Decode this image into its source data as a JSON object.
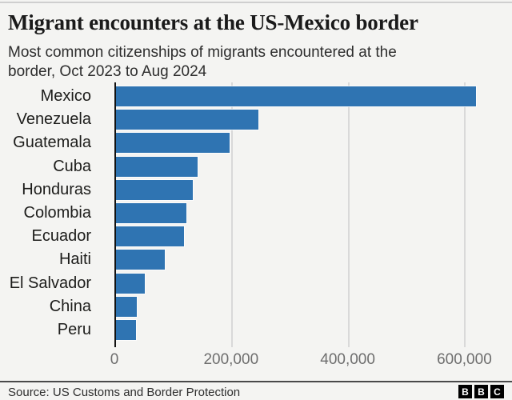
{
  "header": {
    "title": "Migrant encounters at the US-Mexico border",
    "subtitle": "Most common citizenships of migrants encountered at the border, Oct 2023 to Aug 2024"
  },
  "chart_data": {
    "type": "bar",
    "orientation": "horizontal",
    "title": "Migrant encounters at the US-Mexico border",
    "subtitle": "Most common citizenships of migrants encountered at the border, Oct 2023 to Aug 2024",
    "categories": [
      "Mexico",
      "Venezuela",
      "Guatemala",
      "Cuba",
      "Honduras",
      "Colombia",
      "Ecuador",
      "Haiti",
      "El Salvador",
      "China",
      "Peru"
    ],
    "values": [
      620000,
      247000,
      198000,
      142000,
      135000,
      124000,
      120000,
      86000,
      52000,
      38000,
      37000
    ],
    "xlabel": "",
    "ylabel": "",
    "xlim": [
      0,
      668000
    ],
    "xticks": [
      0,
      200000,
      400000,
      600000
    ],
    "xtick_labels": [
      "0",
      "200,000",
      "400,000",
      "600,000"
    ],
    "grid": true,
    "legend": false,
    "colors": {
      "bar": "#2f74b2",
      "axis": "#121212",
      "gridline": "#d9d9d9",
      "tick_label": "#6e6e6e",
      "category_label": "#1d1d1b",
      "background": "#f4f4f2"
    }
  },
  "footer": {
    "source": "Source: US Customs and Border Protection",
    "logo_letters": [
      "B",
      "B",
      "C"
    ]
  }
}
